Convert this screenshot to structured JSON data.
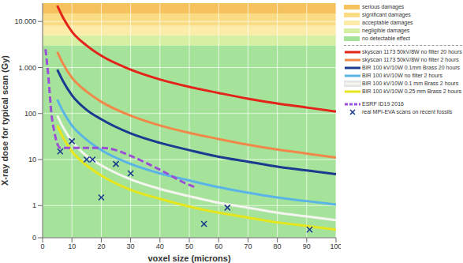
{
  "chart_data": {
    "type": "line",
    "x_label": "voxel size (microns)",
    "y_label": "X-ray dose for typical scan (Gy)",
    "log": "y",
    "grid": true,
    "xlim": [
      0,
      100
    ],
    "xticks": [
      0,
      10,
      20,
      30,
      40,
      50,
      60,
      70,
      80,
      90,
      100
    ],
    "ylim": [
      0.2,
      25000
    ],
    "yticks": [
      {
        "value": 0.2,
        "label": "0"
      },
      1,
      10,
      100,
      {
        "value": 1000,
        "label": "1.000"
      },
      {
        "value": 10000,
        "label": "10.000"
      }
    ],
    "bands": [
      {
        "name": "serious damages",
        "color": "#f6c25e",
        "from": 15000,
        "to": 25000
      },
      {
        "name": "significant damages",
        "color": "#f9dc84",
        "from": 8000,
        "to": 15000
      },
      {
        "name": "acceptable damages",
        "color": "#fbecaa",
        "from": 5000,
        "to": 8000
      },
      {
        "name": "negligible damages",
        "color": "#d6efa2",
        "from": 3000,
        "to": 5000
      },
      {
        "name": "no detectable effect",
        "color": "#a6e39a",
        "from": 0.2,
        "to": 3000
      }
    ],
    "series": [
      {
        "name": "skyscan 1173 50kV/8W no filter 20 hours",
        "color": "#e3241b",
        "line_style": "solid",
        "x": [
          5,
          7,
          10,
          15,
          20,
          30,
          40,
          50,
          60,
          70,
          80,
          90,
          100
        ],
        "values": [
          22000,
          12000,
          6000,
          3000,
          1800,
          900,
          550,
          380,
          280,
          210,
          165,
          135,
          110
        ]
      },
      {
        "name": "skyscan 1173 50kV/8W no filter 2 hours",
        "color": "#f0884a",
        "line_style": "solid",
        "x": [
          5,
          7,
          10,
          15,
          20,
          30,
          40,
          50,
          60,
          70,
          80,
          90,
          100
        ],
        "values": [
          2200,
          1200,
          600,
          300,
          180,
          90,
          55,
          38,
          28,
          21,
          16.5,
          13.5,
          11
        ]
      },
      {
        "name": "BIR 100 kV/10W 0.1mm Brass 20 hours",
        "color": "#1c3a8f",
        "line_style": "solid",
        "x": [
          5,
          7,
          10,
          15,
          20,
          30,
          40,
          50,
          60,
          70,
          80,
          90,
          100
        ],
        "values": [
          900,
          500,
          250,
          120,
          75,
          37,
          23,
          16,
          11.5,
          9,
          7,
          5.8,
          4.8
        ]
      },
      {
        "name": "BIR 100 kV/10W no filter 2 hours",
        "color": "#5ab4e6",
        "line_style": "solid",
        "x": [
          5,
          7,
          10,
          15,
          20,
          30,
          40,
          50,
          60,
          70,
          80,
          90,
          100
        ],
        "values": [
          200,
          110,
          55,
          27,
          16,
          8,
          5,
          3.5,
          2.5,
          1.9,
          1.5,
          1.25,
          1.05
        ]
      },
      {
        "name": "BIR 100 kV/10W 0.1 mm Brass 2 hours",
        "color": "#f5f5f0",
        "line_style": "solid",
        "x": [
          5,
          7,
          10,
          15,
          20,
          30,
          40,
          50,
          60,
          70,
          80,
          90,
          100
        ],
        "values": [
          90,
          50,
          25,
          12,
          7.5,
          3.7,
          2.3,
          1.6,
          1.15,
          0.9,
          0.7,
          0.58,
          0.48
        ]
      },
      {
        "name": "BIR 100 kV/10W 0.25 mm Brass 2 hours",
        "color": "#e6e61c",
        "line_style": "solid",
        "x": [
          5,
          7,
          10,
          15,
          20,
          30,
          40,
          50,
          60,
          70,
          80,
          90,
          100
        ],
        "values": [
          55,
          30,
          15,
          7.5,
          4.5,
          2.2,
          1.4,
          0.95,
          0.7,
          0.55,
          0.43,
          0.36,
          0.3
        ]
      },
      {
        "name": "ESRF ID19 2016",
        "color": "#9b4fd6",
        "line_style": "dashed",
        "x": [
          1,
          2,
          3,
          4,
          5,
          6,
          10,
          20,
          25,
          30,
          40,
          50,
          52
        ],
        "values": [
          2500,
          600,
          100,
          40,
          22,
          18,
          18,
          18,
          16,
          12,
          6,
          2.8,
          2.5
        ]
      },
      {
        "name": "real MPI-EVA scans on recent fossils",
        "type": "scatter",
        "marker": "x",
        "color": "#1c3a8f",
        "x": [
          6,
          10,
          15,
          17,
          20,
          25,
          30,
          55,
          63,
          91
        ],
        "values": [
          15,
          25,
          10,
          10,
          1.5,
          8,
          5,
          0.4,
          0.9,
          0.3
        ]
      }
    ]
  }
}
